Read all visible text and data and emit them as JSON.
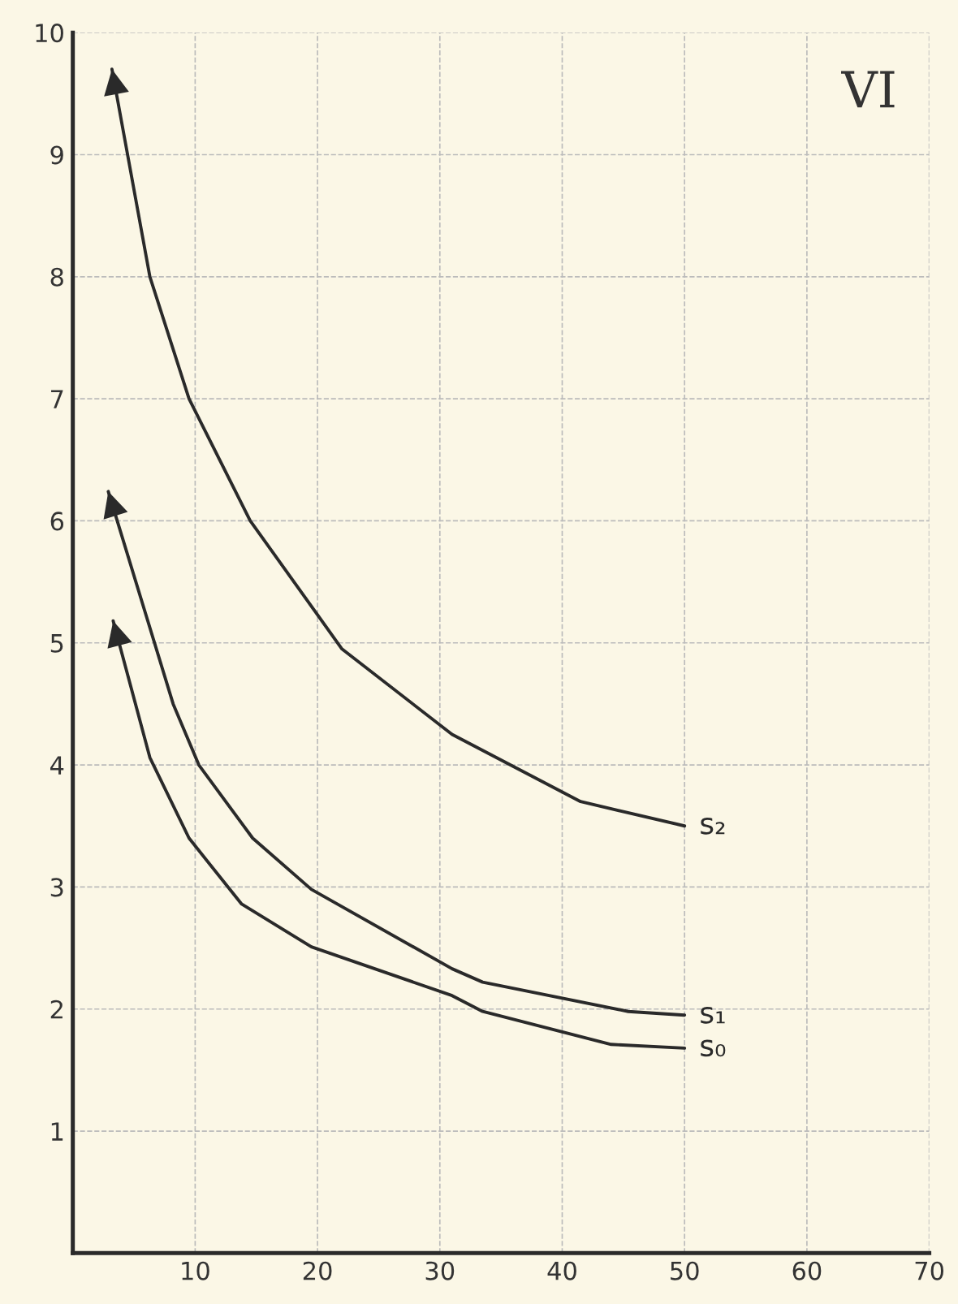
{
  "chart_data": {
    "type": "line",
    "title": "VI",
    "series": [
      {
        "name": "s₂",
        "color": "#2a2a2a",
        "x": [
          3.2,
          6.3,
          9.5,
          14.5,
          22,
          31,
          41.5,
          50
        ],
        "values": [
          9.7,
          8.0,
          7.0,
          6.0,
          4.95,
          4.25,
          3.7,
          3.5
        ]
      },
      {
        "name": "s₁",
        "color": "#2a2a2a",
        "x": [
          2.9,
          8.2,
          10.3,
          14.7,
          19.5,
          31,
          33.5,
          45.4,
          50
        ],
        "values": [
          6.24,
          4.5,
          4.0,
          3.4,
          2.98,
          2.33,
          2.22,
          1.98,
          1.95
        ]
      },
      {
        "name": "s₀",
        "color": "#2a2a2a",
        "x": [
          3.3,
          6.3,
          9.5,
          13.8,
          19.5,
          31,
          33.5,
          44,
          50
        ],
        "values": [
          5.18,
          4.06,
          3.4,
          2.86,
          2.51,
          2.11,
          1.98,
          1.71,
          1.68
        ]
      }
    ],
    "xlim": [
      0,
      70
    ],
    "ylim": [
      0,
      10
    ],
    "xticks": [
      10,
      20,
      30,
      40,
      50,
      60,
      70
    ],
    "yticks": [
      1,
      2,
      3,
      4,
      5,
      6,
      7,
      8,
      9,
      10
    ],
    "grid": true,
    "legend": false,
    "line_style": "solid"
  }
}
